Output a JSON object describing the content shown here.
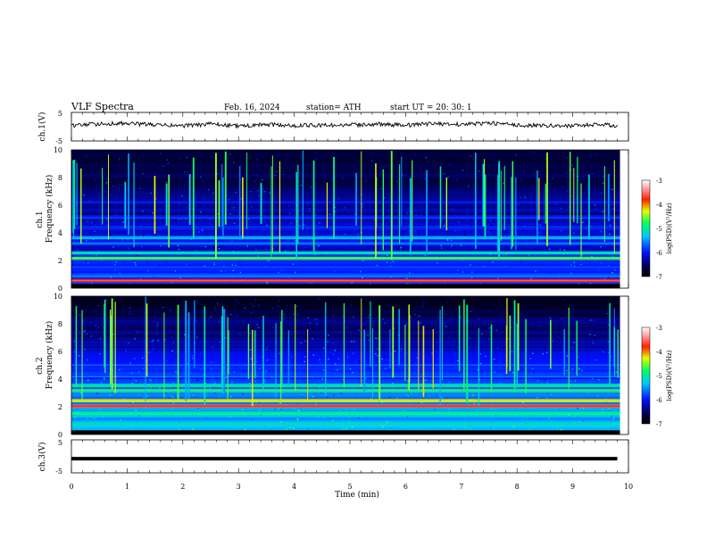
{
  "header": {
    "title": "VLF  Spectra",
    "date": "Feb. 16, 2024",
    "station": "station= ATH",
    "start": "start  UT  =    20: 30: 1"
  },
  "chart_data": [
    {
      "type": "line",
      "id": "ch1-voltage",
      "ylabel": "ch.1(V)",
      "ylim": [
        -5,
        5
      ],
      "yticks": [
        "5",
        "-5"
      ],
      "x": [
        0,
        0.5,
        1,
        1.5,
        2,
        2.5,
        3,
        3.5,
        4,
        4.5,
        5,
        5.5,
        6,
        6.5,
        7,
        7.5,
        8,
        8.5,
        9,
        9.5,
        9.8
      ],
      "y": [
        0.4,
        1.0,
        1.2,
        0.6,
        0.3,
        0.9,
        0.2,
        0.7,
        0.4,
        0.5,
        0.6,
        0.9,
        0.5,
        1.1,
        0.8,
        1.3,
        0.5,
        0.4,
        0.3,
        0.8,
        0.3
      ],
      "color": "#000000"
    },
    {
      "type": "heatmap",
      "id": "ch1-spectrogram",
      "ylabel_top": "ch.1",
      "ylabel": "Frequency (kHz)",
      "ylim": [
        0,
        10
      ],
      "yticks": [
        "0",
        "2",
        "4",
        "6",
        "8",
        "10"
      ],
      "colorbar_label": "log(PSD)(V²/Hz)",
      "colorbar_ticks": [
        "-3",
        "-4",
        "-5",
        "-6",
        "-7"
      ],
      "colorbar_range": [
        -7,
        -3
      ],
      "bands_khz": [
        {
          "f": 0.6,
          "level": -3.8
        },
        {
          "f": 1.0,
          "level": -5.6
        },
        {
          "f": 1.5,
          "level": -5.8
        },
        {
          "f": 2.2,
          "level": -4.6
        },
        {
          "f": 2.6,
          "level": -5.2
        },
        {
          "f": 3.3,
          "level": -5.7
        },
        {
          "f": 3.7,
          "level": -5.3
        },
        {
          "f": 4.4,
          "level": -6.0
        },
        {
          "f": 5.2,
          "level": -6.0
        },
        {
          "f": 6.3,
          "level": -6.1
        }
      ]
    },
    {
      "type": "heatmap",
      "id": "ch2-spectrogram",
      "ylabel_top": "ch.2",
      "ylabel": "Frequency (kHz)",
      "ylim": [
        0,
        10
      ],
      "yticks": [
        "0",
        "2",
        "4",
        "6",
        "8",
        "10"
      ],
      "colorbar_label": "log(PSD)(V²/Hz)",
      "colorbar_ticks": [
        "-3",
        "-4",
        "-5",
        "-6",
        "-7"
      ],
      "colorbar_range": [
        -7,
        -3
      ],
      "bands_khz": [
        {
          "f": 0.8,
          "level": -5.2
        },
        {
          "f": 1.6,
          "level": -5.0
        },
        {
          "f": 2.1,
          "level": -3.6
        },
        {
          "f": 2.5,
          "level": -4.4
        },
        {
          "f": 3.2,
          "level": -4.8
        },
        {
          "f": 3.6,
          "level": -5.0
        },
        {
          "f": 4.3,
          "level": -5.6
        },
        {
          "f": 5.0,
          "level": -5.8
        },
        {
          "f": 6.5,
          "level": -6.2
        }
      ]
    },
    {
      "type": "line",
      "id": "ch3-voltage",
      "ylabel": "ch.3(V)",
      "ylim": [
        -5,
        5
      ],
      "yticks": [
        "5",
        "-5"
      ],
      "x": [
        0,
        9.8
      ],
      "y": [
        -0.7,
        -0.7
      ],
      "color": "#000000"
    }
  ],
  "xaxis": {
    "label": "Time  (min)",
    "ticks": [
      "0",
      "1",
      "2",
      "3",
      "4",
      "5",
      "6",
      "7",
      "8",
      "9",
      "10"
    ],
    "xlim": [
      0,
      10
    ]
  }
}
